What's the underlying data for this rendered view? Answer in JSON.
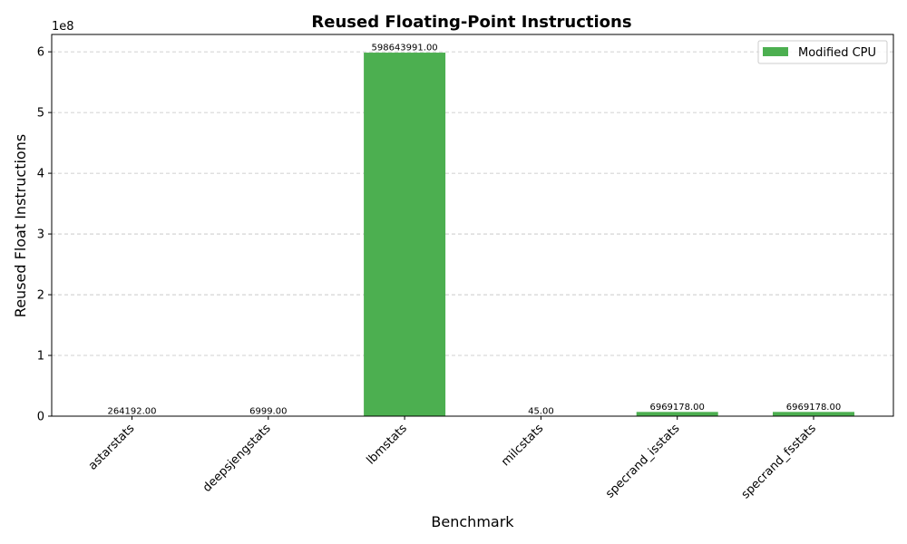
{
  "chart_data": {
    "type": "bar",
    "title": "Reused Floating-Point Instructions",
    "xlabel": "Benchmark",
    "ylabel": "Reused Float Instructions",
    "y_scale_label": "1e8",
    "categories": [
      "astarstats",
      "deepsjengstats",
      "lbmstats",
      "milcstats",
      "specrand_isstats",
      "specrand_fsstats"
    ],
    "series": [
      {
        "name": "Modified CPU",
        "values": [
          264192,
          6999,
          598643991,
          45,
          6969178,
          6969178
        ],
        "data_labels": [
          "264192.00",
          "6999.00",
          "598643991.00",
          "45.00",
          "6969178.00",
          "6969178.00"
        ]
      }
    ],
    "y_ticks": [
      0,
      100000000,
      200000000,
      300000000,
      400000000,
      500000000,
      600000000
    ],
    "y_tick_labels": [
      "0",
      "1",
      "2",
      "3",
      "4",
      "5",
      "6"
    ],
    "ylim": [
      0,
      628576190
    ],
    "bar_color": "#4caf50",
    "grid": "y-dashed",
    "legend_position": "top-right"
  }
}
